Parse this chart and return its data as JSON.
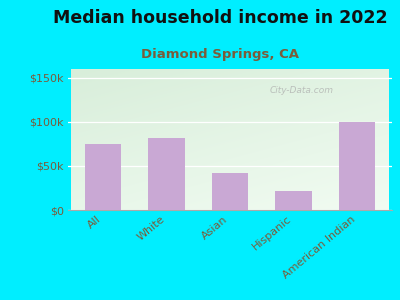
{
  "title": "Median household income in 2022",
  "subtitle": "Diamond Springs, CA",
  "categories": [
    "All",
    "White",
    "Asian",
    "Hispanic",
    "American Indian"
  ],
  "values": [
    75000,
    82000,
    42000,
    22000,
    100000
  ],
  "bar_color": "#c9a8d4",
  "background_outer": "#00eeff",
  "title_color": "#111111",
  "subtitle_color": "#7a5c3a",
  "tick_label_color": "#7a5c3a",
  "ylim": [
    0,
    160000
  ],
  "yticks": [
    0,
    50000,
    100000,
    150000
  ],
  "ytick_labels": [
    "$0",
    "$50k",
    "$100k",
    "$150k"
  ],
  "watermark": "City-Data.com",
  "title_fontsize": 12.5,
  "subtitle_fontsize": 9.5,
  "tick_fontsize": 8,
  "grid_color": "#ccddcc",
  "plot_bg_left": "#d8eeda",
  "plot_bg_right": "#f8fff8"
}
